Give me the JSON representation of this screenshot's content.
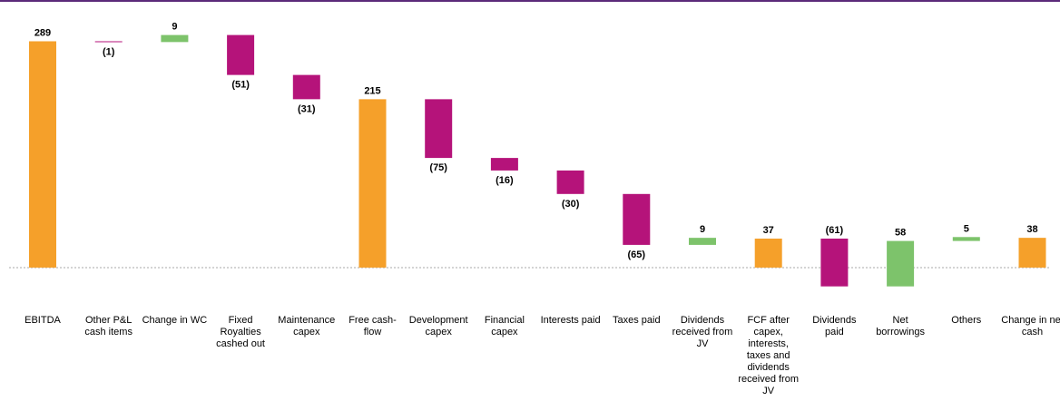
{
  "chart_data": {
    "type": "waterfall",
    "categories": [
      "EBITDA",
      "Other P&L cash items",
      "Change in WC",
      "Fixed Royalties cashed out",
      "Maintenance capex",
      "Free cash-flow",
      "Development capex",
      "Financial capex",
      "Interests paid",
      "Taxes paid",
      "Dividends received from JV",
      "FCF after capex, interests, taxes and dividends received from JV",
      "Dividends paid",
      "Net borrowings",
      "Others",
      "Change in net cash"
    ],
    "values": [
      289,
      -1,
      9,
      -51,
      -31,
      215,
      -75,
      -16,
      -30,
      -65,
      9,
      37,
      -61,
      58,
      5,
      38
    ],
    "value_labels": [
      "289",
      "(1)",
      "9",
      "(51)",
      "(31)",
      "215",
      "(75)",
      "(16)",
      "(30)",
      "(65)",
      "9",
      "37",
      "(61)",
      "58",
      "5",
      "38"
    ],
    "is_total": [
      true,
      false,
      false,
      false,
      false,
      true,
      false,
      false,
      false,
      false,
      false,
      true,
      false,
      false,
      false,
      true
    ],
    "colors": {
      "total": "#f5a02a",
      "increase": "#7dc36b",
      "decrease": "#b5137a"
    },
    "ylim": [
      -80,
      300
    ]
  }
}
